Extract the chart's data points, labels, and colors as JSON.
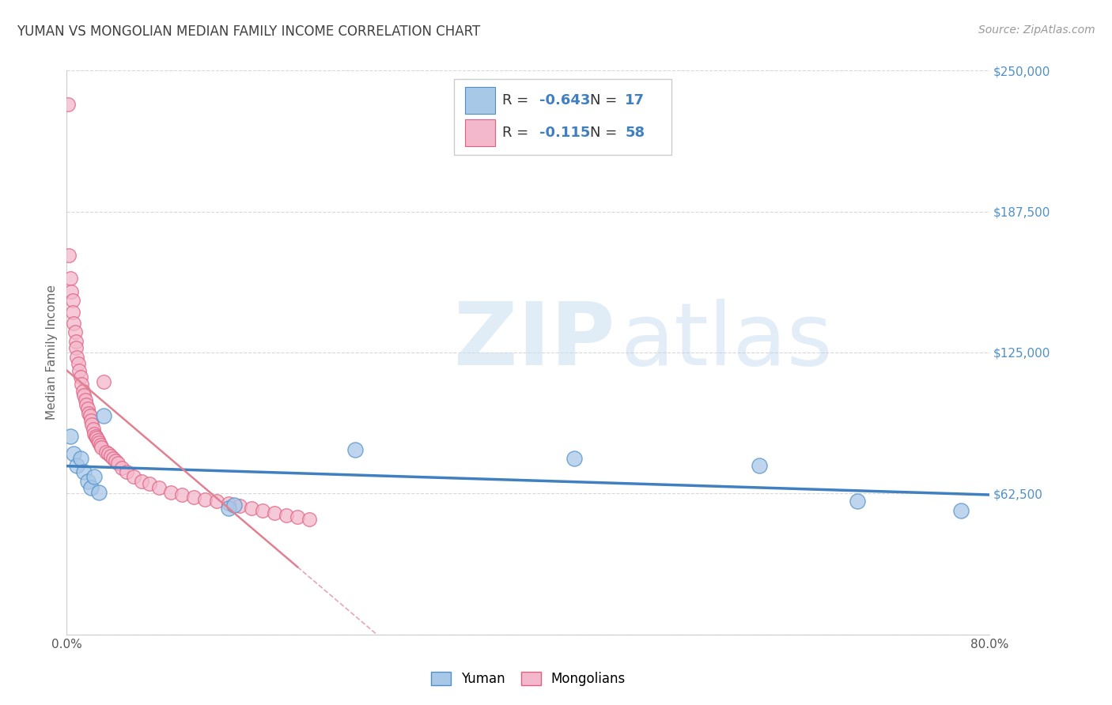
{
  "title": "YUMAN VS MONGOLIAN MEDIAN FAMILY INCOME CORRELATION CHART",
  "source": "Source: ZipAtlas.com",
  "ylabel": "Median Family Income",
  "watermark_zip": "ZIP",
  "watermark_atlas": "atlas",
  "ymax": 250000,
  "ymin": 0,
  "xmax": 0.8,
  "xmin": 0.0,
  "yticks": [
    0,
    62500,
    125000,
    187500,
    250000
  ],
  "ytick_labels": [
    "",
    "$62,500",
    "$125,000",
    "$187,500",
    "$250,000"
  ],
  "legend_yuman_r": "-0.643",
  "legend_yuman_n": "17",
  "legend_mongolian_r": "-0.115",
  "legend_mongolian_n": "58",
  "blue_color": "#a8c8e8",
  "pink_color": "#f4b8cc",
  "blue_edge_color": "#5090c8",
  "pink_edge_color": "#e06080",
  "blue_line_color": "#4080c0",
  "pink_line_color": "#e08090",
  "background_color": "#ffffff",
  "grid_color": "#d8d8d8",
  "title_color": "#404040",
  "axis_label_color": "#5090c8",
  "yuman_points_x": [
    0.003,
    0.006,
    0.009,
    0.012,
    0.015,
    0.018,
    0.021,
    0.024,
    0.028,
    0.032,
    0.14,
    0.145,
    0.25,
    0.44,
    0.6,
    0.685,
    0.775
  ],
  "yuman_points_y": [
    88000,
    80000,
    75000,
    78000,
    72000,
    68000,
    65000,
    70000,
    63000,
    97000,
    56000,
    57500,
    82000,
    78000,
    75000,
    59000,
    55000
  ],
  "mongolian_points_x": [
    0.001,
    0.002,
    0.003,
    0.004,
    0.005,
    0.005,
    0.006,
    0.007,
    0.008,
    0.008,
    0.009,
    0.01,
    0.011,
    0.012,
    0.013,
    0.014,
    0.015,
    0.016,
    0.017,
    0.018,
    0.019,
    0.02,
    0.021,
    0.022,
    0.023,
    0.024,
    0.025,
    0.026,
    0.027,
    0.028,
    0.029,
    0.03,
    0.032,
    0.034,
    0.036,
    0.038,
    0.04,
    0.042,
    0.044,
    0.048,
    0.052,
    0.058,
    0.065,
    0.072,
    0.08,
    0.09,
    0.1,
    0.11,
    0.12,
    0.13,
    0.14,
    0.15,
    0.16,
    0.17,
    0.18,
    0.19,
    0.2,
    0.21
  ],
  "mongolian_points_y": [
    235000,
    168000,
    158000,
    152000,
    148000,
    143000,
    138000,
    134000,
    130000,
    127000,
    123000,
    120000,
    117000,
    114000,
    111000,
    108000,
    106000,
    104000,
    102000,
    100000,
    98000,
    97000,
    95000,
    93000,
    91000,
    89000,
    88000,
    87000,
    86000,
    85000,
    84000,
    83000,
    112000,
    81000,
    80000,
    79000,
    78000,
    77000,
    76000,
    74000,
    72000,
    70000,
    68000,
    67000,
    65000,
    63000,
    62000,
    61000,
    60000,
    59000,
    58000,
    57000,
    56000,
    55000,
    54000,
    53000,
    52000,
    51000
  ],
  "pink_line_solid_xmax": 0.2,
  "title_fontsize": 12,
  "source_fontsize": 10,
  "tick_label_fontsize": 11
}
